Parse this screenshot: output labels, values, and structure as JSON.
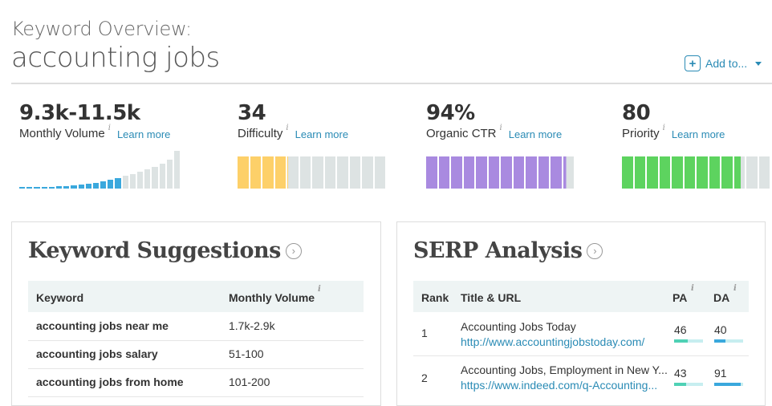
{
  "header": {
    "subtitle": "Keyword Overview:",
    "keyword": "accounting jobs",
    "add_to_label": "Add to...",
    "add_icon": "plus-icon"
  },
  "metrics": {
    "volume": {
      "value": "9.3k-11.5k",
      "label": "Monthly Volume",
      "info": "i",
      "learn": "Learn more"
    },
    "difficulty": {
      "value": "34",
      "label": "Difficulty",
      "info": "i",
      "learn": "Learn more",
      "filled_fraction": 0.34,
      "color": "#fdd069"
    },
    "ctr": {
      "value": "94%",
      "label": "Organic CTR",
      "info": "i",
      "learn": "Learn more",
      "filled_fraction": 0.94,
      "color": "#a98ae0"
    },
    "priority": {
      "value": "80",
      "label": "Priority",
      "info": "i",
      "learn": "Learn more",
      "filled_fraction": 0.8,
      "color": "#5dd35f"
    }
  },
  "colors": {
    "accent": "#2a8bb5",
    "empty_segment": "#dde3e3",
    "volume_highlight": "#3aa8dd"
  },
  "keyword_suggestions": {
    "title": "Keyword Suggestions",
    "columns": [
      "Keyword",
      "Monthly Volume"
    ],
    "volume_info": "i",
    "rows": [
      {
        "keyword": "accounting jobs near me",
        "volume": "1.7k-2.9k"
      },
      {
        "keyword": "accounting jobs salary",
        "volume": "51-100"
      },
      {
        "keyword": "accounting jobs from home",
        "volume": "101-200"
      }
    ]
  },
  "serp_analysis": {
    "title": "SERP Analysis",
    "columns": {
      "rank": "Rank",
      "title": "Title & URL",
      "pa": "PA",
      "da": "DA"
    },
    "pa_info": "i",
    "da_info": "i",
    "rows": [
      {
        "rank": "1",
        "title": "Accounting Jobs Today",
        "url": "http://www.accountingjobstoday.com/",
        "pa": "46",
        "da": "40",
        "pa_fraction": 0.46,
        "da_fraction": 0.4
      },
      {
        "rank": "2",
        "title": "Accounting Jobs, Employment in New Y...",
        "url": "https://www.indeed.com/q-Accounting...",
        "pa": "43",
        "da": "91",
        "pa_fraction": 0.43,
        "da_fraction": 0.91
      }
    ]
  }
}
